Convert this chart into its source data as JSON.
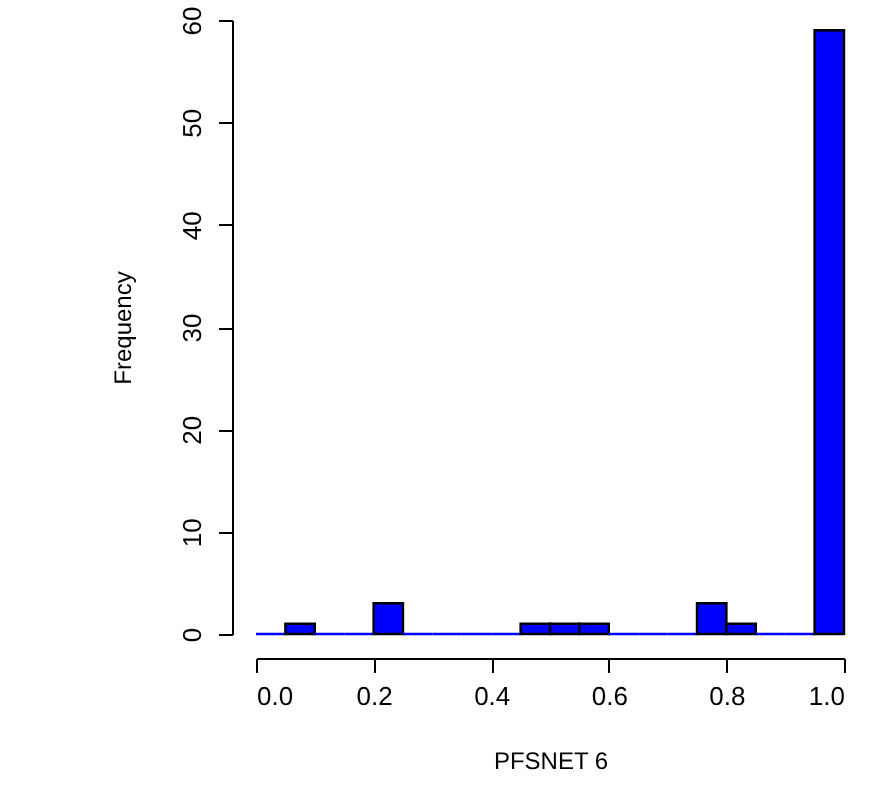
{
  "chart_data": {
    "type": "histogram",
    "xlabel": "PFSNET 6",
    "ylabel": "Frequency",
    "bins": [
      0,
      0.05,
      0.1,
      0.15,
      0.2,
      0.25,
      0.3,
      0.35,
      0.4,
      0.45,
      0.5,
      0.55,
      0.6,
      0.65,
      0.7,
      0.75,
      0.8,
      0.85,
      0.9,
      0.95,
      1.0
    ],
    "values": [
      0,
      1,
      0,
      0,
      3,
      0,
      0,
      0,
      0,
      1,
      1,
      1,
      0,
      0,
      0,
      3,
      1,
      0,
      0,
      59
    ],
    "color": "#0000ff",
    "xlim": [
      0,
      1
    ],
    "xticks": [
      {
        "value": 0,
        "label": "0.0"
      },
      0.2,
      0.4,
      0.6,
      0.8,
      {
        "value": 1,
        "label": "1.0"
      }
    ],
    "ylim": [
      0,
      60
    ],
    "yticks": [
      0,
      10,
      20,
      30,
      40,
      50,
      60
    ],
    "grid": false
  }
}
